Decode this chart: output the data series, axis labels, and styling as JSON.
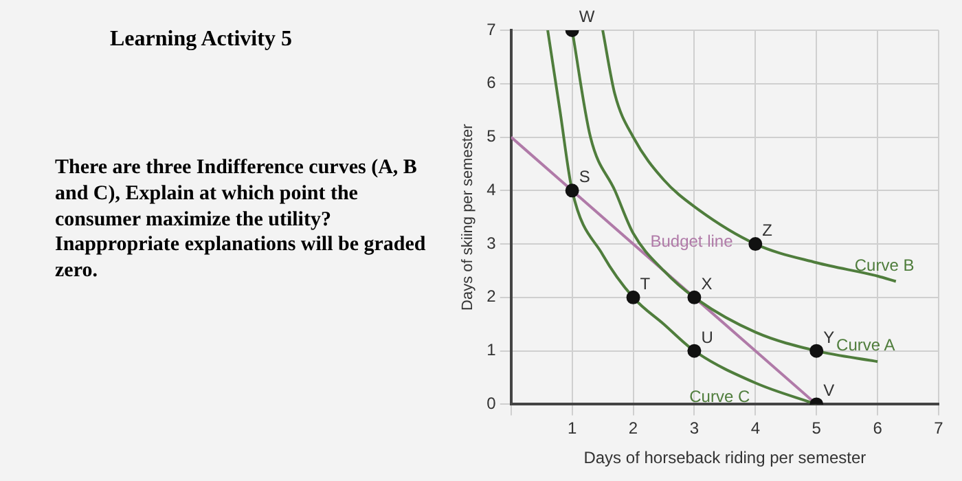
{
  "chart_data": {
    "type": "line",
    "title": "Learning Activity 5",
    "subtitle": "There are three Indifference curves (A, B and C), Explain at which point the consumer maximize the utility? Inappropriate explanations will be graded zero.",
    "xlabel": "Days of horseback riding per semester",
    "ylabel": "Days of skiing per semester",
    "xlim": [
      0,
      7
    ],
    "ylim": [
      0,
      7
    ],
    "xticks": [
      {
        "value": 0,
        "label": null
      },
      1,
      2,
      3,
      4,
      5,
      6,
      7
    ],
    "yticks": [
      0,
      1,
      2,
      3,
      4,
      5,
      6,
      7
    ],
    "grid": true,
    "legend": false,
    "marker": "none",
    "series": [
      {
        "name": "Curve C",
        "color": "#4f7d3c",
        "x": [
          0.6,
          0.8,
          1,
          1.5,
          2,
          2.5,
          3,
          4,
          5
        ],
        "values": [
          7,
          5.5,
          4,
          2.8,
          2,
          1.5,
          1,
          0.4,
          0
        ]
      },
      {
        "name": "Curve A",
        "color": "#4f7d3c",
        "x": [
          1,
          1.3,
          1.7,
          2,
          2.5,
          3,
          4,
          5,
          6
        ],
        "values": [
          7,
          5,
          4,
          3.2,
          2.5,
          2,
          1.35,
          1,
          0.8
        ]
      },
      {
        "name": "Curve B",
        "color": "#4f7d3c",
        "x": [
          1.5,
          1.7,
          2,
          2.5,
          3,
          4,
          5,
          6,
          6.3
        ],
        "values": [
          7,
          5.8,
          5,
          4.2,
          3.7,
          3,
          2.65,
          2.4,
          2.3
        ]
      },
      {
        "name": "Budget line",
        "color": "#b07aa8",
        "x": [
          0,
          5
        ],
        "values": [
          5,
          0
        ]
      },
      {
        "type": "scatter",
        "color": "#111111",
        "marker": "circle",
        "x": [
          1,
          1,
          2,
          3,
          3,
          5,
          5,
          4
        ],
        "values": [
          7,
          4,
          2,
          2,
          1,
          1,
          0,
          3
        ]
      }
    ],
    "annotations": [
      {
        "text": "W",
        "x": 1,
        "y": 7
      },
      {
        "text": "S",
        "x": 1,
        "y": 4
      },
      {
        "text": "T",
        "x": 2,
        "y": 2
      },
      {
        "text": "X",
        "x": 3,
        "y": 2
      },
      {
        "text": "U",
        "x": 3,
        "y": 1
      },
      {
        "text": "Y",
        "x": 5,
        "y": 1
      },
      {
        "text": "V",
        "x": 5,
        "y": 0
      },
      {
        "text": "Z",
        "x": 4,
        "y": 3
      }
    ]
  }
}
